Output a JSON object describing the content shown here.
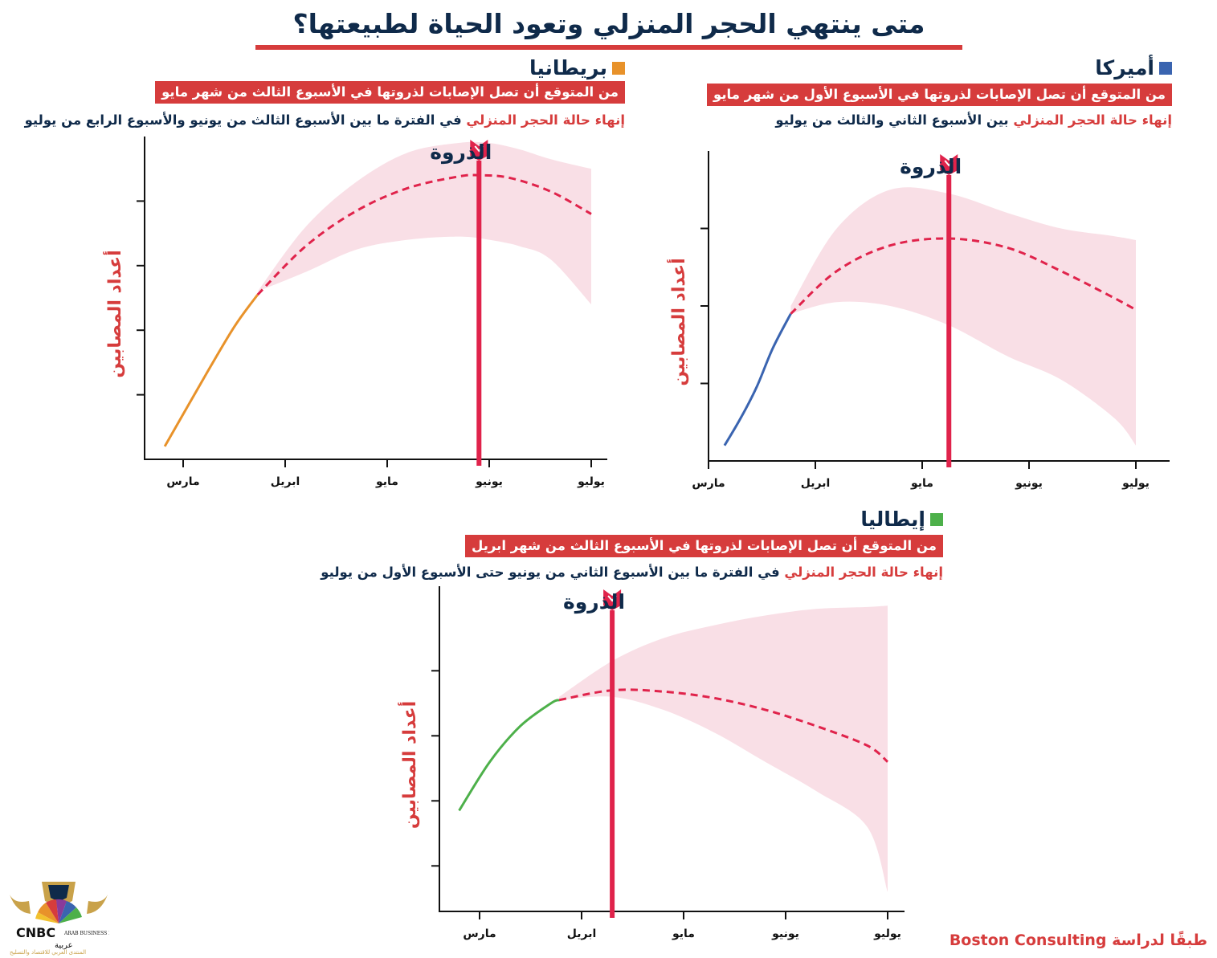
{
  "title": "متى ينتهي الحجر المنزلي وتعود الحياة لطبيعتها؟",
  "source": "طبقًا لدراسة Boston Consulting",
  "logo": {
    "brand": "CNBC عربية",
    "tagline": "ARAB BUSINESS FORUM",
    "subtitle": "المنتدى العربي للاقتصاد والتسليح"
  },
  "colors": {
    "accent_red": "#d63c3c",
    "peak_red": "#e0234b",
    "band_pink": "#f9dfe6",
    "navy": "#0f2a4a"
  },
  "panels": {
    "usa": {
      "country": "أميركا",
      "marker_color": "#3a64b0",
      "peak_text": "من المتوقع أن تصل الإصابات لذروتها في الأسبوع الأول من شهر مايو",
      "end_highlight": "إنهاء حالة الحجر المنزلي",
      "end_rest": " بين الأسبوع الثاني والثالث من يوليو",
      "ylabel": "أعداد المصابين",
      "peak_label": "الذروة"
    },
    "uk": {
      "country": "بريطانيا",
      "marker_color": "#e8922a",
      "peak_text": "من المتوقع أن تصل الإصابات لذروتها في الأسبوع الثالث من شهر مايو",
      "end_highlight": "إنهاء حالة الحجر المنزلي",
      "end_rest": " في الفترة ما بين الأسبوع الثالث من يونيو والأسبوع الرابع من يوليو",
      "ylabel": "أعداد المصابين",
      "peak_label": "الذروة"
    },
    "italy": {
      "country": "إيطاليا",
      "marker_color": "#4db04a",
      "peak_text": "من المتوقع أن تصل الإصابات لذروتها في الأسبوع الثالث من شهر ابريل",
      "end_highlight": "إنهاء حالة الحجر المنزلي",
      "end_rest": " في الفترة ما بين الأسبوع الثاني من يونيو حتى الأسبوع الأول من يوليو",
      "ylabel": "أعداد المصابين",
      "peak_label": "الذروة"
    }
  },
  "chart_data": [
    {
      "type": "line",
      "id": "uk",
      "xlabel": "",
      "ylabel": "أعداد المصابين",
      "x_tick_labels": [
        "مارس",
        "ابريل",
        "مايو",
        "يونيو",
        "يوليو"
      ],
      "xlim": [
        -0.18,
        4.13
      ],
      "ylim": [
        0,
        5
      ],
      "y_ticks": [
        1,
        2,
        3,
        4
      ],
      "peak_x": 2.9,
      "series": [
        {
          "style": "solid",
          "color": "#e8922a",
          "x": [
            -0.18,
            0.2,
            0.5,
            0.73
          ],
          "y": [
            0.2,
            1.25,
            2.05,
            2.55
          ]
        },
        {
          "style": "dashed",
          "color": "#e0234b",
          "x": [
            0.73,
            1.2,
            1.7,
            2.2,
            2.7,
            2.9,
            3.2,
            3.6,
            4.0
          ],
          "y": [
            2.55,
            3.3,
            3.85,
            4.2,
            4.38,
            4.4,
            4.36,
            4.15,
            3.8
          ]
        }
      ],
      "band": {
        "x": [
          0.73,
          1.2,
          1.7,
          2.2,
          2.7,
          3.0,
          3.3,
          3.6,
          4.0
        ],
        "upper": [
          2.6,
          3.6,
          4.3,
          4.75,
          4.9,
          4.9,
          4.8,
          4.65,
          4.5
        ],
        "lower": [
          2.6,
          2.9,
          3.25,
          3.4,
          3.45,
          3.4,
          3.3,
          3.1,
          2.4
        ]
      }
    },
    {
      "type": "line",
      "id": "usa",
      "xlabel": "",
      "ylabel": "أعداد المصابين",
      "x_tick_labels": [
        "مارس",
        "ابريل",
        "مايو",
        "يونيو",
        "يوليو"
      ],
      "xlim": [
        -0.05,
        4.3
      ],
      "ylim": [
        0,
        4
      ],
      "y_ticks": [
        1,
        2,
        3
      ],
      "peak_x": 2.25,
      "series": [
        {
          "style": "solid",
          "color": "#3a64b0",
          "x": [
            0.15,
            0.3,
            0.45,
            0.6,
            0.77
          ],
          "y": [
            0.2,
            0.55,
            0.95,
            1.45,
            1.9
          ]
        },
        {
          "style": "dashed",
          "color": "#e0234b",
          "x": [
            0.77,
            1.2,
            1.7,
            2.25,
            2.8,
            3.3,
            3.8,
            4.0
          ],
          "y": [
            1.9,
            2.45,
            2.78,
            2.87,
            2.75,
            2.45,
            2.1,
            1.95
          ]
        }
      ],
      "band": {
        "x": [
          0.77,
          1.2,
          1.7,
          2.25,
          2.8,
          3.3,
          3.8,
          4.0
        ],
        "upper": [
          2.0,
          3.0,
          3.5,
          3.45,
          3.2,
          3.0,
          2.9,
          2.85
        ],
        "lower": [
          1.9,
          2.05,
          2.0,
          1.75,
          1.35,
          1.05,
          0.55,
          0.2
        ]
      }
    },
    {
      "type": "line",
      "id": "italy",
      "xlabel": "",
      "ylabel": "أعداد المصابين",
      "x_tick_labels": [
        "مارس",
        "ابريل",
        "مايو",
        "يونيو",
        "يوليو"
      ],
      "xlim": [
        -0.4,
        4.15
      ],
      "ylim": [
        0,
        5
      ],
      "y_ticks": [
        0.7,
        1.7,
        2.7,
        3.7
      ],
      "peak_x": 1.3,
      "series": [
        {
          "style": "solid",
          "color": "#4db04a",
          "x": [
            -0.2,
            0.1,
            0.4,
            0.7,
            0.78
          ],
          "y": [
            1.55,
            2.3,
            2.85,
            3.2,
            3.25
          ]
        },
        {
          "style": "dashed",
          "color": "#e0234b",
          "x": [
            0.78,
            1.3,
            1.8,
            2.3,
            2.8,
            3.3,
            3.8,
            4.0
          ],
          "y": [
            3.25,
            3.4,
            3.38,
            3.28,
            3.1,
            2.85,
            2.55,
            2.3
          ]
        }
      ],
      "band": {
        "x": [
          0.78,
          1.3,
          1.8,
          2.3,
          2.8,
          3.3,
          3.8,
          4.0
        ],
        "upper": [
          3.3,
          3.85,
          4.2,
          4.4,
          4.55,
          4.65,
          4.68,
          4.7
        ],
        "lower": [
          3.25,
          3.3,
          3.1,
          2.75,
          2.3,
          1.85,
          1.3,
          0.3
        ]
      }
    }
  ]
}
